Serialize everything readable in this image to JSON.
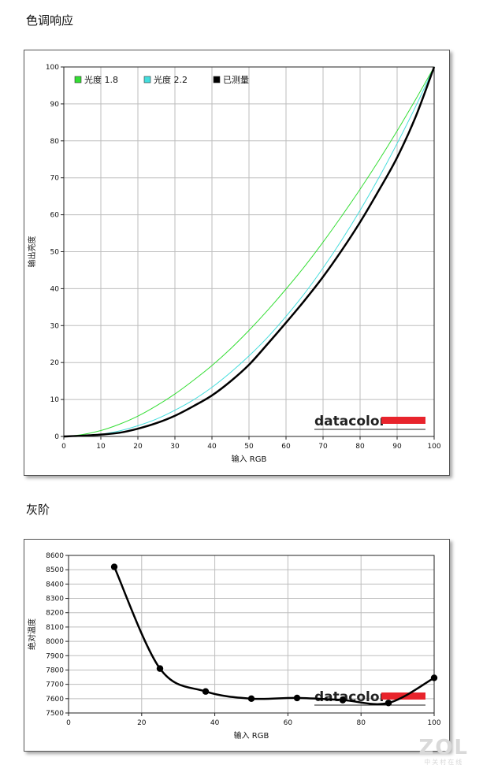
{
  "sections": {
    "tone_title": "色调响应",
    "gray_title": "灰阶"
  },
  "brand": {
    "logo_text": "datacolor",
    "logo_bar_color": "#e8242c"
  },
  "watermark": {
    "main": "ZOL",
    "sub": "中关村在线"
  },
  "chart_data": [
    {
      "type": "line",
      "xlabel": "输入 RGB",
      "ylabel": "输出亮度",
      "xlim": [
        0,
        100
      ],
      "ylim": [
        0,
        100
      ],
      "xticks": [
        0,
        10,
        20,
        30,
        40,
        50,
        60,
        70,
        80,
        90,
        100
      ],
      "yticks": [
        0,
        10,
        20,
        30,
        40,
        50,
        60,
        70,
        80,
        90,
        100
      ],
      "grid": true,
      "legend_position": "top-left",
      "series": [
        {
          "name": "光度 1.8",
          "color": "#33dd33",
          "width": 1,
          "x": [
            0,
            5,
            10,
            15,
            20,
            25,
            30,
            35,
            40,
            45,
            50,
            55,
            60,
            65,
            70,
            75,
            80,
            85,
            90,
            95,
            100
          ],
          "y": [
            0,
            0.5,
            1.6,
            3.3,
            5.5,
            8.3,
            11.5,
            15.2,
            19.2,
            23.7,
            28.7,
            34.1,
            39.9,
            46.0,
            52.6,
            59.6,
            66.9,
            74.6,
            82.7,
            91.2,
            100
          ]
        },
        {
          "name": "光度 2.2",
          "color": "#44dddd",
          "width": 1,
          "x": [
            0,
            5,
            10,
            15,
            20,
            25,
            30,
            35,
            40,
            45,
            50,
            55,
            60,
            65,
            70,
            75,
            80,
            85,
            90,
            95,
            100
          ],
          "y": [
            0,
            0.1,
            0.6,
            1.5,
            2.9,
            4.7,
            7.1,
            9.9,
            13.3,
            17.3,
            21.8,
            26.8,
            32.5,
            38.7,
            45.6,
            53.1,
            61.2,
            69.9,
            79.3,
            89.3,
            100
          ]
        },
        {
          "name": "已测量",
          "color": "#000000",
          "width": 2.5,
          "x": [
            0,
            5,
            10,
            15,
            20,
            25,
            30,
            35,
            40,
            45,
            50,
            55,
            60,
            65,
            70,
            75,
            80,
            85,
            90,
            95,
            100
          ],
          "y": [
            0,
            0.2,
            0.5,
            1.0,
            2.1,
            3.6,
            5.6,
            8.2,
            11.1,
            14.9,
            19.4,
            25.0,
            30.8,
            36.8,
            43.2,
            50.3,
            58.0,
            66.5,
            75.5,
            86.5,
            100
          ]
        }
      ]
    },
    {
      "type": "line",
      "xlabel": "输入 RGB",
      "ylabel": "绝对温度",
      "xlim": [
        0,
        100
      ],
      "ylim": [
        7500,
        8600
      ],
      "xticks": [
        0,
        20,
        40,
        60,
        80,
        100
      ],
      "yticks": [
        7500,
        7600,
        7700,
        7800,
        7900,
        8000,
        8100,
        8200,
        8300,
        8400,
        8500,
        8600
      ],
      "grid": true,
      "series": [
        {
          "color": "#000000",
          "width": 2.5,
          "markers": true,
          "x": [
            12.5,
            25,
            37.5,
            50,
            62.5,
            75,
            87.5,
            100
          ],
          "y": [
            8520,
            7810,
            7650,
            7600,
            7605,
            7590,
            7570,
            7745
          ]
        }
      ]
    }
  ]
}
